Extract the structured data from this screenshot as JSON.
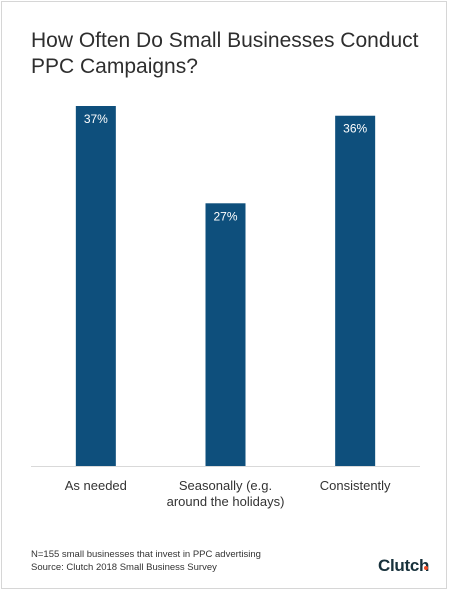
{
  "header": {
    "title": "How Often Do Small Businesses Conduct PPC Campaigns?"
  },
  "chart_data": {
    "type": "bar",
    "categories": [
      "As needed",
      "Seasonally (e.g. around the holidays)",
      "Consistently"
    ],
    "category_lines": [
      [
        "As needed"
      ],
      [
        "Seasonally (e.g.",
        "around the holidays)"
      ],
      [
        "Consistently"
      ]
    ],
    "values": [
      37,
      27,
      36
    ],
    "data_labels": [
      "37%",
      "27%",
      "36%"
    ],
    "ylim": [
      0,
      37
    ],
    "grid": false,
    "legend": "none",
    "bar_color": "#0e4f7c",
    "title": "How Often Do Small Businesses Conduct PPC Campaigns?",
    "xlabel": "",
    "ylabel": ""
  },
  "footer": {
    "note": "N=155 small businesses that invest in PPC advertising",
    "source": "Source: Clutch 2018 Small Business Survey",
    "logo_text": "Clutch",
    "logo_accent": "#ef4a24"
  }
}
